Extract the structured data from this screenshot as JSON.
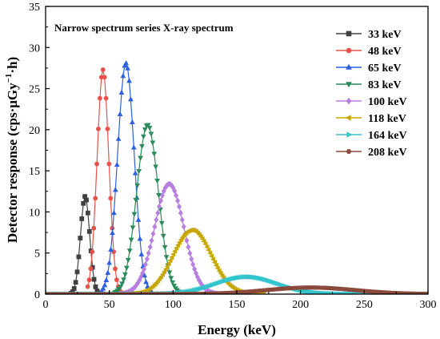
{
  "chart_data": {
    "type": "line",
    "title": "Narrow spectrum series X-ray spectrum",
    "xlabel": "Energy (keV)",
    "ylabel_main": "Detector response (cps·μGy",
    "ylabel_sup": "−1",
    "ylabel_tail": "·h)",
    "xlim": [
      0,
      300
    ],
    "ylim": [
      0,
      35
    ],
    "xticks": [
      0,
      50,
      100,
      150,
      200,
      250,
      300
    ],
    "yticks": [
      0,
      5,
      10,
      15,
      20,
      25,
      30,
      35
    ],
    "grid": false,
    "legend_position": "top-right",
    "series": [
      {
        "name": "33 keV",
        "color": "#404040",
        "marker": "square",
        "peak_x": 31,
        "peak_y": 11.9,
        "sigma": 3.6,
        "x_start": 20,
        "x_end": 46,
        "step": 1.2
      },
      {
        "name": "48 keV",
        "color": "#e8524a",
        "marker": "circle",
        "peak_x": 45,
        "peak_y": 27.3,
        "sigma": 4.6,
        "x_start": 33,
        "x_end": 60,
        "step": 1.2
      },
      {
        "name": "65 keV",
        "color": "#2d5fe0",
        "marker": "triangle-up",
        "peak_x": 63,
        "peak_y": 28.1,
        "sigma": 6.5,
        "x_start": 44,
        "x_end": 84,
        "step": 1.2
      },
      {
        "name": "83 keV",
        "color": "#2a8a5a",
        "marker": "triangle-down",
        "peak_x": 80,
        "peak_y": 20.6,
        "sigma": 8.5,
        "x_start": 54,
        "x_end": 110,
        "step": 1.2
      },
      {
        "name": "100 keV",
        "color": "#b77fe0",
        "marker": "diamond",
        "peak_x": 97,
        "peak_y": 13.4,
        "sigma": 11.5,
        "x_start": 58,
        "x_end": 138,
        "step": 1.2
      },
      {
        "name": "118 keV",
        "color": "#c8a800",
        "marker": "triangle-left",
        "peak_x": 115,
        "peak_y": 7.8,
        "sigma": 15,
        "x_start": 62,
        "x_end": 172,
        "step": 1.2
      },
      {
        "name": "164 keV",
        "color": "#33c4cc",
        "marker": "triangle-right",
        "peak_x": 158,
        "peak_y": 2.1,
        "sigma": 24,
        "x_start": 0,
        "x_end": 300,
        "step": 1.2
      },
      {
        "name": "208 keV",
        "color": "#8b4a3c",
        "marker": "hexagon",
        "peak_x": 208,
        "peak_y": 0.8,
        "sigma": 35,
        "x_start": 0,
        "x_end": 300,
        "step": 1.2
      }
    ]
  }
}
